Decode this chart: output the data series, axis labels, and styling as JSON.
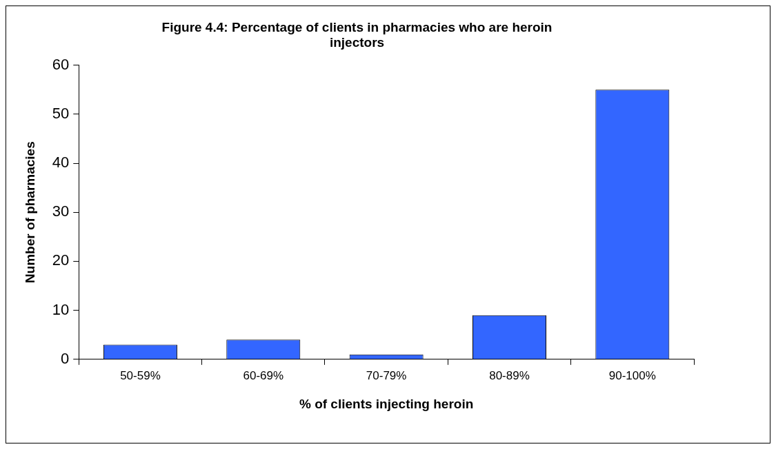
{
  "chart_data": {
    "type": "bar",
    "title": "Figure 4.4: Percentage of clients in pharmacies who are heroin injectors",
    "xlabel": "% of clients injecting heroin",
    "ylabel": "Number of pharmacies",
    "categories": [
      "50-59%",
      "60-69%",
      "70-79%",
      "80-89%",
      "90-100%"
    ],
    "values": [
      3,
      4,
      1,
      9,
      55
    ],
    "color": "#3366ff",
    "ylim": [
      0,
      60
    ],
    "yticks": [
      0,
      10,
      20,
      30,
      40,
      50,
      60
    ],
    "grid": false,
    "legend": false
  }
}
